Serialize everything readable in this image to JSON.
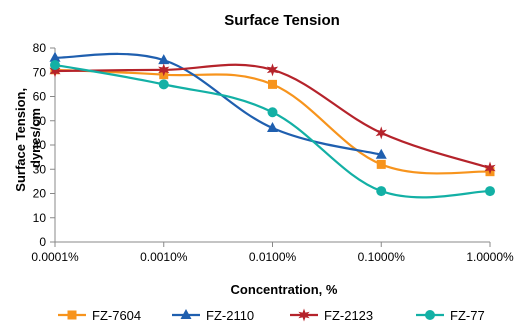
{
  "chart_data": {
    "type": "line",
    "title": "Surface Tension",
    "xlabel": "Concentration, %",
    "ylabel": [
      "Surface Tension,",
      "dynes/cm"
    ],
    "categories": [
      "0.0001%",
      "0.0010%",
      "0.0100%",
      "0.1000%",
      "1.0000%"
    ],
    "ylim": [
      0,
      80
    ],
    "yticks": [
      "0",
      "10",
      "20",
      "30",
      "40",
      "50",
      "60",
      "70",
      "80"
    ],
    "grid": false,
    "legend_position": "bottom",
    "series": [
      {
        "name": "FZ-7604",
        "color": "#F7941D",
        "marker": "square",
        "values": [
          71,
          69,
          65,
          32,
          29
        ]
      },
      {
        "name": "FZ-2110",
        "color": "#1F5FAF",
        "marker": "triangle",
        "values": [
          76,
          75,
          47,
          36,
          null
        ]
      },
      {
        "name": "FZ-2123",
        "color": "#B5232B",
        "marker": "star",
        "values": [
          70.5,
          71,
          71,
          45,
          30.5
        ]
      },
      {
        "name": "FZ-77",
        "color": "#13B0A5",
        "marker": "circle",
        "values": [
          73,
          65,
          53.5,
          21,
          21
        ]
      }
    ]
  }
}
